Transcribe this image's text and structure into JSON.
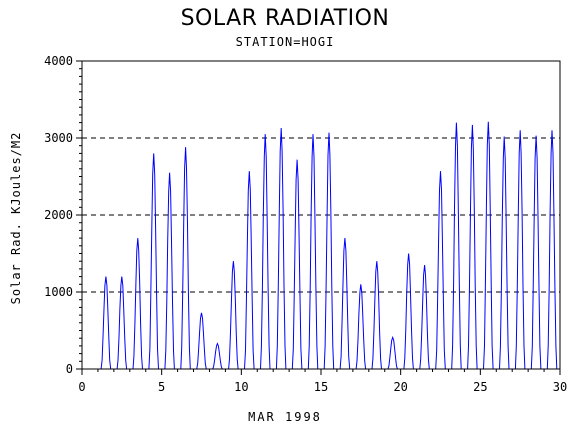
{
  "chart_data": {
    "type": "line",
    "title": "SOLAR RADIATION",
    "subtitle": "STATION=HOGI",
    "xlabel": "MAR 1998",
    "ylabel": "Solar Rad. KJoules/M2",
    "xlim": [
      0,
      30
    ],
    "ylim": [
      0,
      4000
    ],
    "x_ticks": [
      "0",
      "5",
      "10",
      "15",
      "20",
      "25",
      "30"
    ],
    "y_ticks": [
      "0",
      "1000",
      "2000",
      "3000",
      "4000"
    ],
    "grid": "horizontal dashed",
    "line_color": "#0000ff",
    "daily_peaks": [
      {
        "day": 1,
        "value": 1200
      },
      {
        "day": 2,
        "value": 1200
      },
      {
        "day": 3,
        "value": 1700
      },
      {
        "day": 4,
        "value": 2800
      },
      {
        "day": 5,
        "value": 2550
      },
      {
        "day": 6,
        "value": 2880
      },
      {
        "day": 7,
        "value": 730
      },
      {
        "day": 8,
        "value": 330
      },
      {
        "day": 9,
        "value": 1400
      },
      {
        "day": 10,
        "value": 2570
      },
      {
        "day": 11,
        "value": 3050
      },
      {
        "day": 12,
        "value": 3130
      },
      {
        "day": 13,
        "value": 2720
      },
      {
        "day": 14,
        "value": 3050
      },
      {
        "day": 15,
        "value": 3070
      },
      {
        "day": 16,
        "value": 1700
      },
      {
        "day": 17,
        "value": 1100
      },
      {
        "day": 18,
        "value": 1400
      },
      {
        "day": 19,
        "value": 410
      },
      {
        "day": 20,
        "value": 1500
      },
      {
        "day": 21,
        "value": 1350
      },
      {
        "day": 22,
        "value": 2570
      },
      {
        "day": 23,
        "value": 3200
      },
      {
        "day": 24,
        "value": 3170
      },
      {
        "day": 25,
        "value": 3210
      },
      {
        "day": 26,
        "value": 3020
      },
      {
        "day": 27,
        "value": 3100
      },
      {
        "day": 28,
        "value": 3030
      },
      {
        "day": 29,
        "value": 3100
      }
    ]
  }
}
